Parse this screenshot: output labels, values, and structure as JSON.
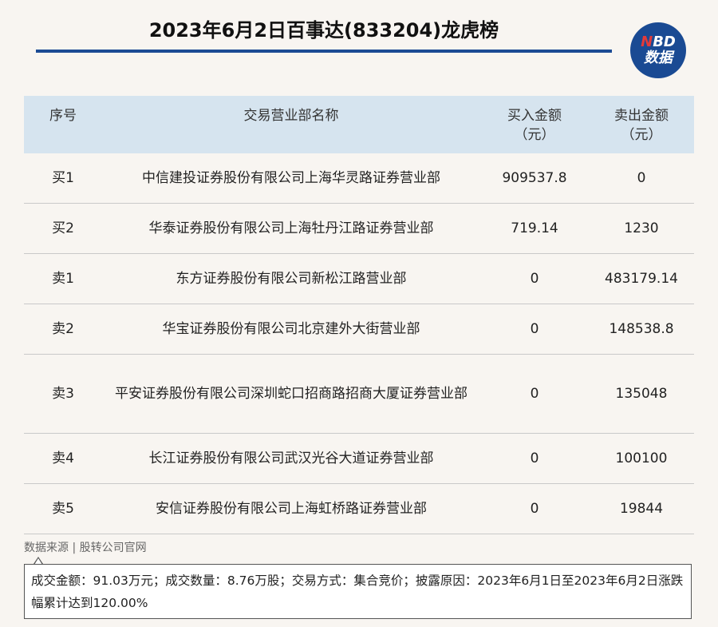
{
  "title": "2023年6月2日百事达(833204)龙虎榜",
  "logo": {
    "line1_accent": "N",
    "line1_rest": "BD",
    "line2": "数据",
    "accent_color": "#e23a3a",
    "bg_color": "#1a4a93"
  },
  "table": {
    "headers": {
      "index": "序号",
      "name": "交易营业部名称",
      "buy_line1": "买入金额",
      "buy_line2": "（元）",
      "sell_line1": "卖出金额",
      "sell_line2": "（元）"
    },
    "rows": [
      {
        "index": "买1",
        "name": "中信建投证券股份有限公司上海华灵路证券营业部",
        "buy": "909537.8",
        "sell": "0"
      },
      {
        "index": "买2",
        "name": "华泰证券股份有限公司上海牡丹江路证券营业部",
        "buy": "719.14",
        "sell": "1230"
      },
      {
        "index": "卖1",
        "name": "东方证券股份有限公司新松江路营业部",
        "buy": "0",
        "sell": "483179.14"
      },
      {
        "index": "卖2",
        "name": "华宝证券股份有限公司北京建外大街营业部",
        "buy": "0",
        "sell": "148538.8"
      },
      {
        "index": "卖3",
        "name": "平安证券股份有限公司深圳蛇口招商路招商大厦证券营业部",
        "buy": "0",
        "sell": "135048"
      },
      {
        "index": "卖4",
        "name": "长江证券股份有限公司武汉光谷大道证券营业部",
        "buy": "0",
        "sell": "100100"
      },
      {
        "index": "卖5",
        "name": "安信证券股份有限公司上海虹桥路证券营业部",
        "buy": "0",
        "sell": "19844"
      }
    ]
  },
  "source": "数据来源 | 股转公司官网",
  "note": "成交金额：91.03万元；成交数量：8.76万股；交易方式：集合竞价；披露原因：2023年6月1日至2023年6月2日涨跌幅累计达到120.00%"
}
